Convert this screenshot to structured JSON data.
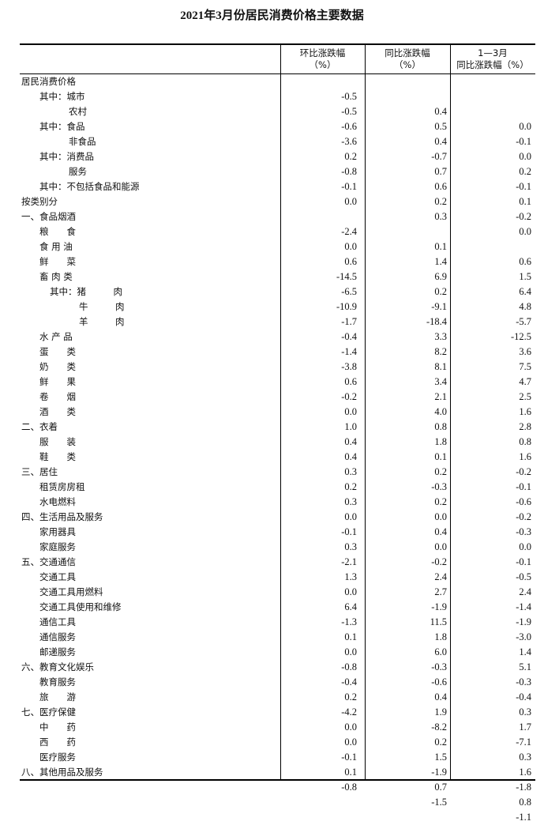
{
  "title": "2021年3月份居民消费价格主要数据",
  "headers": {
    "col1": [
      "环比涨跌幅",
      "（%）"
    ],
    "col2": [
      "同比涨跌幅",
      "（%）"
    ],
    "col3": [
      "1—3月",
      "同比涨跌幅（%）"
    ]
  },
  "rows": [
    {
      "label": "居民消费价格",
      "indent": 0,
      "mom": "-0.5",
      "yoy": "0.4",
      "ytd": "0.0"
    },
    {
      "label": "其中：城市",
      "indent": 1,
      "mom": "-0.5",
      "yoy": "0.5",
      "ytd": "-0.1"
    },
    {
      "label": "农村",
      "indent": 2,
      "mom": "-0.6",
      "yoy": "0.4",
      "ytd": "0.0"
    },
    {
      "label": "其中：食品",
      "indent": 1,
      "mom": "-3.6",
      "yoy": "-0.7",
      "ytd": "0.2"
    },
    {
      "label": "非食品",
      "indent": 2,
      "mom": "0.2",
      "yoy": "0.7",
      "ytd": "-0.1"
    },
    {
      "label": "其中：消费品",
      "indent": 1,
      "mom": "-0.8",
      "yoy": "0.6",
      "ytd": "0.1"
    },
    {
      "label": "服务",
      "indent": 2,
      "mom": "-0.1",
      "yoy": "0.2",
      "ytd": "-0.2"
    },
    {
      "label": "其中：不包括食品和能源",
      "indent": 1,
      "mom": "0.0",
      "yoy": "0.3",
      "ytd": "0.0"
    },
    {
      "label": "按类别分",
      "indent": 0,
      "mom": "",
      "yoy": "",
      "ytd": ""
    },
    {
      "label": "一、食品烟酒",
      "indent": 0,
      "mom": "-2.4",
      "yoy": "0.1",
      "ytd": "0.6"
    },
    {
      "label": "粮　　食",
      "indent": 1,
      "mom": "0.0",
      "yoy": "1.4",
      "ytd": "1.5"
    },
    {
      "label": "食 用 油",
      "indent": 1,
      "mom": "0.6",
      "yoy": "6.9",
      "ytd": "6.4"
    },
    {
      "label": "鲜　　菜",
      "indent": 1,
      "mom": "-14.5",
      "yoy": "0.2",
      "ytd": "4.8"
    },
    {
      "label": "畜 肉 类",
      "indent": 1,
      "mom": "-6.5",
      "yoy": "-9.1",
      "ytd": "-5.7"
    },
    {
      "label": "其中：猪　　　肉",
      "indent": 3,
      "mom": "-10.9",
      "yoy": "-18.4",
      "ytd": "-12.5"
    },
    {
      "label": "牛　　　肉",
      "indent": 4,
      "mom": "-1.7",
      "yoy": "3.3",
      "ytd": "3.6"
    },
    {
      "label": "羊　　　肉",
      "indent": 4,
      "mom": "-0.4",
      "yoy": "8.2",
      "ytd": "7.5"
    },
    {
      "label": "水 产 品",
      "indent": 1,
      "mom": "-1.4",
      "yoy": "8.1",
      "ytd": "4.7"
    },
    {
      "label": "蛋　　类",
      "indent": 1,
      "mom": "-3.8",
      "yoy": "3.4",
      "ytd": "2.5"
    },
    {
      "label": "奶　　类",
      "indent": 1,
      "mom": "0.6",
      "yoy": "2.1",
      "ytd": "1.6"
    },
    {
      "label": "鲜　　果",
      "indent": 1,
      "mom": "-0.2",
      "yoy": "4.0",
      "ytd": "2.8"
    },
    {
      "label": "卷　　烟",
      "indent": 1,
      "mom": "0.0",
      "yoy": "0.8",
      "ytd": "0.8"
    },
    {
      "label": "酒　　类",
      "indent": 1,
      "mom": "1.0",
      "yoy": "1.8",
      "ytd": "1.6"
    },
    {
      "label": "二、衣着",
      "indent": 0,
      "mom": "0.4",
      "yoy": "0.1",
      "ytd": "-0.2"
    },
    {
      "label": "服　　装",
      "indent": 1,
      "mom": "0.4",
      "yoy": "0.2",
      "ytd": "-0.1"
    },
    {
      "label": "鞋　　类",
      "indent": 1,
      "mom": "0.3",
      "yoy": "-0.3",
      "ytd": "-0.6"
    },
    {
      "label": "三、居住",
      "indent": 0,
      "mom": "0.2",
      "yoy": "0.2",
      "ytd": "-0.2"
    },
    {
      "label": "租赁房房租",
      "indent": 1,
      "mom": "0.3",
      "yoy": "0.0",
      "ytd": "-0.3"
    },
    {
      "label": "水电燃料",
      "indent": 1,
      "mom": "0.0",
      "yoy": "0.4",
      "ytd": "0.0"
    },
    {
      "label": "四、生活用品及服务",
      "indent": 0,
      "mom": "-0.1",
      "yoy": "0.0",
      "ytd": "-0.1"
    },
    {
      "label": "家用器具",
      "indent": 1,
      "mom": "0.3",
      "yoy": "-0.2",
      "ytd": "-0.5"
    },
    {
      "label": "家庭服务",
      "indent": 1,
      "mom": "-2.1",
      "yoy": "2.4",
      "ytd": "2.4"
    },
    {
      "label": "五、交通通信",
      "indent": 0,
      "mom": "1.3",
      "yoy": "2.7",
      "ytd": "-1.4"
    },
    {
      "label": "交通工具",
      "indent": 1,
      "mom": "0.0",
      "yoy": "-1.9",
      "ytd": "-1.9"
    },
    {
      "label": "交通工具用燃料",
      "indent": 1,
      "mom": "6.4",
      "yoy": "11.5",
      "ytd": "-3.0"
    },
    {
      "label": "交通工具使用和维修",
      "indent": 1,
      "mom": "-1.3",
      "yoy": "1.8",
      "ytd": "1.4"
    },
    {
      "label": "通信工具",
      "indent": 1,
      "mom": "0.1",
      "yoy": "6.0",
      "ytd": "5.1"
    },
    {
      "label": "通信服务",
      "indent": 1,
      "mom": "0.0",
      "yoy": "-0.3",
      "ytd": "-0.3"
    },
    {
      "label": "邮递服务",
      "indent": 1,
      "mom": "-0.8",
      "yoy": "-0.6",
      "ytd": "-0.4"
    },
    {
      "label": "六、教育文化娱乐",
      "indent": 0,
      "mom": "-0.4",
      "yoy": "0.4",
      "ytd": "0.3"
    },
    {
      "label": "教育服务",
      "indent": 1,
      "mom": "0.2",
      "yoy": "1.9",
      "ytd": "1.7"
    },
    {
      "label": "旅　　游",
      "indent": 1,
      "mom": "-4.2",
      "yoy": "-8.2",
      "ytd": "-7.1"
    },
    {
      "label": "七、医疗保健",
      "indent": 0,
      "mom": "0.0",
      "yoy": "0.2",
      "ytd": "0.3"
    },
    {
      "label": "中　　药",
      "indent": 1,
      "mom": "0.0",
      "yoy": "1.5",
      "ytd": "1.6"
    },
    {
      "label": "西　　药",
      "indent": 1,
      "mom": "-0.1",
      "yoy": "-1.9",
      "ytd": "-1.8"
    },
    {
      "label": "医疗服务",
      "indent": 1,
      "mom": "0.1",
      "yoy": "0.7",
      "ytd": "0.8"
    },
    {
      "label": "八、其他用品及服务",
      "indent": 0,
      "mom": "-0.8",
      "yoy": "-1.5",
      "ytd": "-1.1"
    }
  ]
}
